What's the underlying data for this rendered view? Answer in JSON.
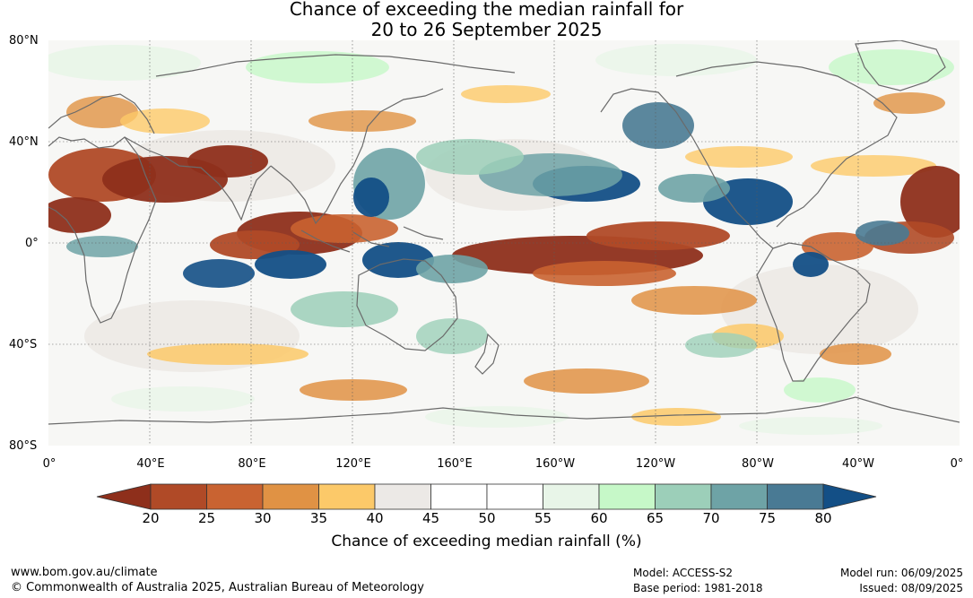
{
  "title_line1": "Chance of exceeding the median rainfall for",
  "title_line2": "20 to 26 September 2025",
  "lat_labels": [
    "80°N",
    "40°N",
    "0°",
    "40°S",
    "80°S"
  ],
  "lon_labels": [
    "0°",
    "40°E",
    "80°E",
    "120°E",
    "160°E",
    "160°W",
    "120°W",
    "80°W",
    "40°W",
    "0°"
  ],
  "legend": {
    "ticks": [
      "20",
      "25",
      "30",
      "35",
      "40",
      "45",
      "50",
      "55",
      "60",
      "65",
      "70",
      "75",
      "80"
    ],
    "title": "Chance of exceeding median rainfall (%)",
    "colors": {
      "below20": "#8e2f1b",
      "bins": [
        "#b04a27",
        "#c96331",
        "#e09244",
        "#fcc969",
        "#ece9e6",
        "#ffffff",
        "#ffffff",
        "#e8f5e8",
        "#c6f8c8",
        "#9ccfb9",
        "#6ea3a6",
        "#497a94"
      ],
      "above80": "#134f86"
    }
  },
  "footer": {
    "website": "www.bom.gov.au/climate",
    "copyright": "© Commonwealth of Australia 2025, Australian Bureau of Meteorology",
    "model": "Model: ACCESS-S2",
    "base_period": "Base period: 1981-2018",
    "model_run": "Model run: 06/09/2025",
    "issued": "Issued: 08/09/2025"
  }
}
